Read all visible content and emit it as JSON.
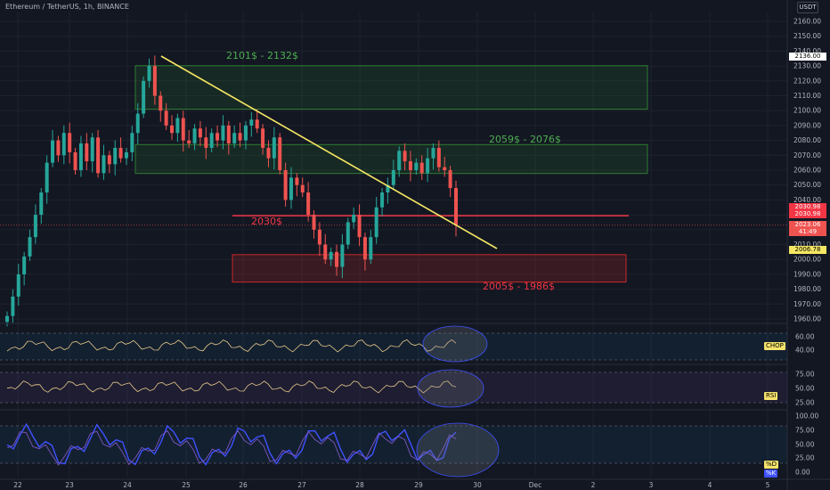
{
  "header": {
    "symbol_title": "Ethereum / TetherUS, 1h, BINANCE",
    "currency_button": "USDT"
  },
  "zones": {
    "upper": "2101$ - 2132$",
    "middle": "2059$ - 2076$",
    "line": "2030$",
    "lower": "2005$ - 1986$"
  },
  "price_axis": {
    "ticks": [
      "2160.00",
      "2150.00",
      "2140.00",
      "2130.00",
      "2120.00",
      "2110.00",
      "2100.00",
      "2090.00",
      "2080.00",
      "2070.00",
      "2060.00",
      "2050.00",
      "2040.00",
      "2030.00",
      "2020.00",
      "2010.00",
      "2000.00",
      "1990.00",
      "1980.00",
      "1970.00",
      "1960.00"
    ],
    "tag_2136": "2136.00",
    "tag_red1": "2030.98",
    "tag_red2": "2030.98",
    "tag_current": "2023.06",
    "tag_timer": "41:49",
    "tag_2006": "2006.78"
  },
  "chop_axis": {
    "ticks": [
      "60.00",
      "40.00"
    ],
    "label": "CHOP"
  },
  "rsi_axis": {
    "ticks": [
      "75.00",
      "50.00",
      "25.00"
    ],
    "label": "RSI"
  },
  "stoch_axis": {
    "ticks": [
      "100.00",
      "75.00",
      "50.00",
      "25.00",
      "0.00"
    ],
    "label_d": "%D",
    "label_k": "%K"
  },
  "time_axis": {
    "labels": [
      "22",
      "23",
      "24",
      "25",
      "26",
      "27",
      "28",
      "29",
      "30",
      "Dec",
      "2",
      "3",
      "4",
      "5"
    ]
  },
  "colors": {
    "bg": "#131722",
    "up": "#26a69a",
    "down": "#ef5350",
    "trend": "#f5e663",
    "zone_green": "#2e7d32",
    "zone_red": "#c62828",
    "line_red": "#f23645",
    "chop_line": "#e8c98a",
    "rsi_line": "#e8c98a",
    "stoch_k": "#3f51ff"
  },
  "chart_data": {
    "type": "candlestick",
    "symbol": "Ethereum / TetherUS",
    "interval": "1h",
    "ylim": [
      1955,
      2165
    ],
    "x_labels": [
      "22",
      "23",
      "24",
      "25",
      "26",
      "27",
      "28",
      "29",
      "30",
      "Dec",
      "2",
      "3",
      "4",
      "5"
    ],
    "closes": [
      1962,
      1975,
      1990,
      2002,
      2015,
      2030,
      2045,
      2065,
      2080,
      2070,
      2085,
      2072,
      2060,
      2078,
      2066,
      2082,
      2058,
      2070,
      2064,
      2075,
      2068,
      2072,
      2085,
      2098,
      2120,
      2130,
      2110,
      2100,
      2090,
      2085,
      2095,
      2080,
      2078,
      2088,
      2082,
      2075,
      2085,
      2080,
      2090,
      2078,
      2085,
      2080,
      2090,
      2094,
      2088,
      2075,
      2068,
      2082,
      2060,
      2040,
      2055,
      2050,
      2045,
      2030,
      2020,
      2010,
      2000,
      2005,
      1995,
      2010,
      2025,
      2030,
      2015,
      2000,
      2015,
      2035,
      2045,
      2050,
      2060,
      2073,
      2066,
      2060,
      2065,
      2058,
      2068,
      2075,
      2062,
      2060,
      2048,
      2023
    ],
    "levels": {
      "zone_upper": [
        2101,
        2132
      ],
      "zone_middle": [
        2059,
        2076
      ],
      "line": 2030,
      "zone_lower": [
        1986,
        2005
      ]
    },
    "trendline": [
      [
        2136
      ],
      [
        2005
      ]
    ],
    "indicators": [
      "CHOP",
      "RSI",
      "Stoch %K",
      "Stoch %D"
    ]
  }
}
